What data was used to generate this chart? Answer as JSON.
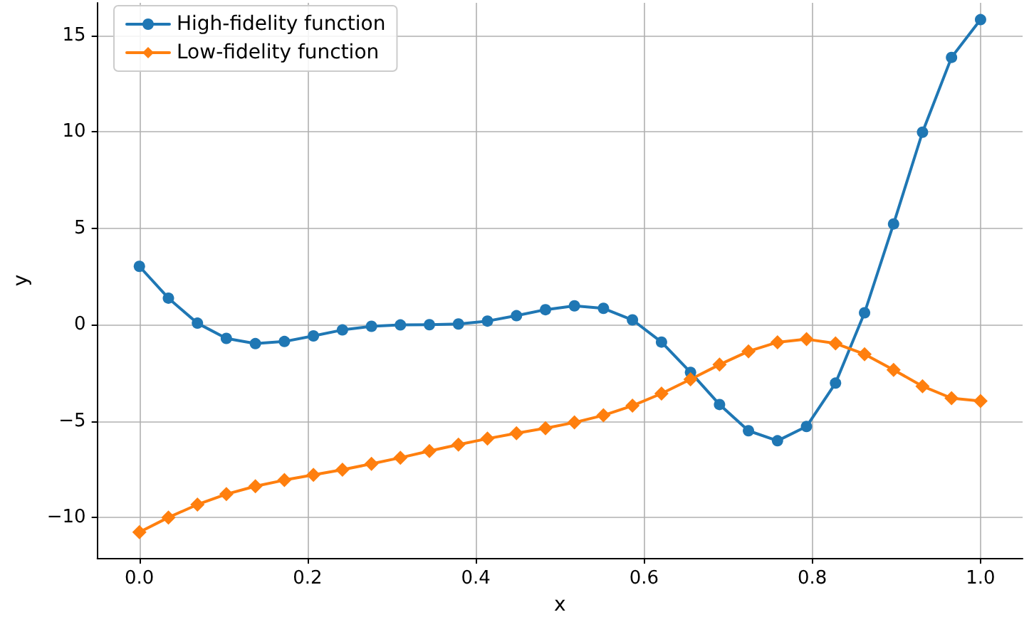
{
  "chart_data": {
    "type": "line",
    "xlabel": "x",
    "ylabel": "y",
    "x": [
      0,
      0.0345,
      0.069,
      0.1034,
      0.1379,
      0.1724,
      0.2069,
      0.2414,
      0.2759,
      0.3103,
      0.3448,
      0.3793,
      0.4138,
      0.4483,
      0.4828,
      0.5172,
      0.5517,
      0.5862,
      0.6207,
      0.6552,
      0.6897,
      0.7241,
      0.7586,
      0.7931,
      0.8276,
      0.8621,
      0.8966,
      0.931,
      0.9655,
      1
    ],
    "series": [
      {
        "name": "High-fidelity function",
        "color": "#1f77b4",
        "marker": "circle",
        "values": [
          3.03,
          1.38,
          0.08,
          -0.71,
          -0.98,
          -0.87,
          -0.58,
          -0.27,
          -0.08,
          -0.01,
          0,
          0.04,
          0.19,
          0.47,
          0.78,
          0.98,
          0.85,
          0.25,
          -0.9,
          -2.47,
          -4.14,
          -5.5,
          -6.02,
          -5.28,
          -3.03,
          0.62,
          5.23,
          9.99,
          13.87,
          15.83
        ]
      },
      {
        "name": "Low-fidelity function",
        "color": "#ff7f0e",
        "marker": "diamond",
        "values": [
          -10.76,
          -10,
          -9.33,
          -8.79,
          -8.38,
          -8.06,
          -7.79,
          -7.52,
          -7.22,
          -6.9,
          -6.55,
          -6.22,
          -5.91,
          -5.63,
          -5.37,
          -5.07,
          -4.7,
          -4.2,
          -3.57,
          -2.83,
          -2.07,
          -1.38,
          -0.91,
          -0.75,
          -0.97,
          -1.53,
          -2.34,
          -3.19,
          -3.81,
          -3.96
        ]
      }
    ],
    "xlim": [
      -0.05,
      1.05
    ],
    "xticks": [
      {
        "value": 0,
        "label": "0.0"
      },
      0.2,
      0.4,
      0.6,
      0.8,
      {
        "value": 1,
        "label": "1.0"
      }
    ],
    "ylim": [
      -12.1,
      16.7
    ],
    "yticks": [
      {
        "value": -10,
        "label": "−10"
      },
      {
        "value": -5,
        "label": "−5"
      },
      0,
      5,
      10,
      15
    ],
    "grid": true,
    "legend": "top left",
    "line_style": "solid"
  }
}
